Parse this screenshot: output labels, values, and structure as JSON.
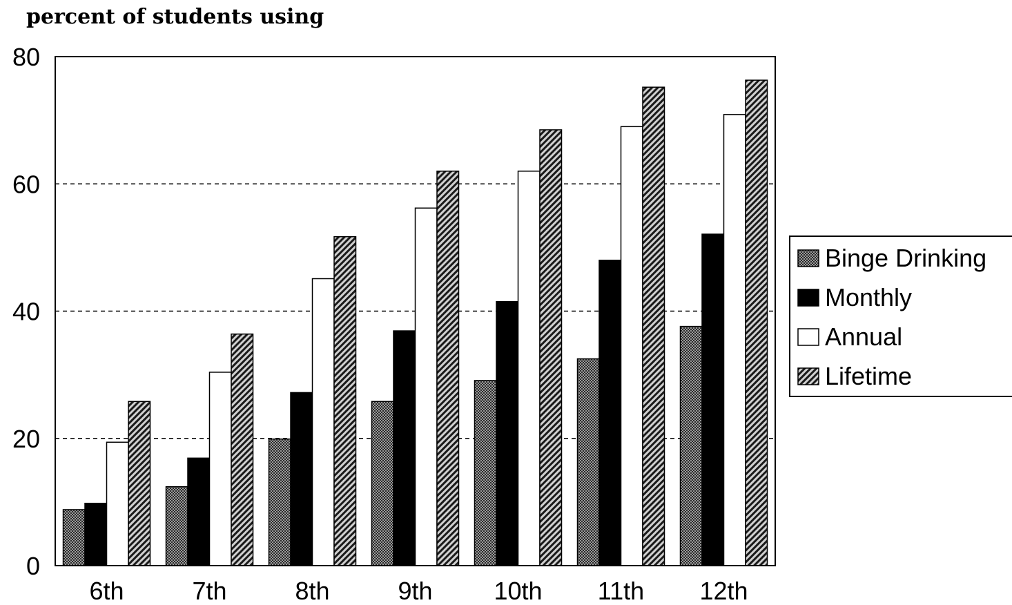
{
  "chart_data": {
    "type": "bar",
    "ylabel": "percent of students using",
    "ylim": [
      0,
      80
    ],
    "yticks": [
      0,
      20,
      40,
      60,
      80
    ],
    "grid": "horizontal dashed at 20, 40, 60",
    "legend_position": "right",
    "categories": [
      "6th",
      "7th",
      "8th",
      "9th",
      "10th",
      "11th",
      "12th"
    ],
    "series": [
      {
        "name": "Binge Drinking",
        "pattern": "dense-dots",
        "color": "#7a7a7a",
        "values": [
          8.8,
          12.4,
          19.9,
          25.8,
          29.1,
          32.5,
          37.6
        ]
      },
      {
        "name": "Monthly",
        "pattern": "solid",
        "color": "#000000",
        "values": [
          9.8,
          16.9,
          27.2,
          36.9,
          41.5,
          48.0,
          52.1
        ]
      },
      {
        "name": "Annual",
        "pattern": "none",
        "color": "#ffffff",
        "values": [
          19.4,
          30.4,
          45.1,
          56.2,
          62.0,
          69.0,
          70.9
        ]
      },
      {
        "name": "Lifetime",
        "pattern": "diagonal-hatch",
        "color": "#444444",
        "values": [
          25.8,
          36.4,
          51.7,
          62.0,
          68.5,
          75.2,
          76.3
        ]
      }
    ]
  }
}
